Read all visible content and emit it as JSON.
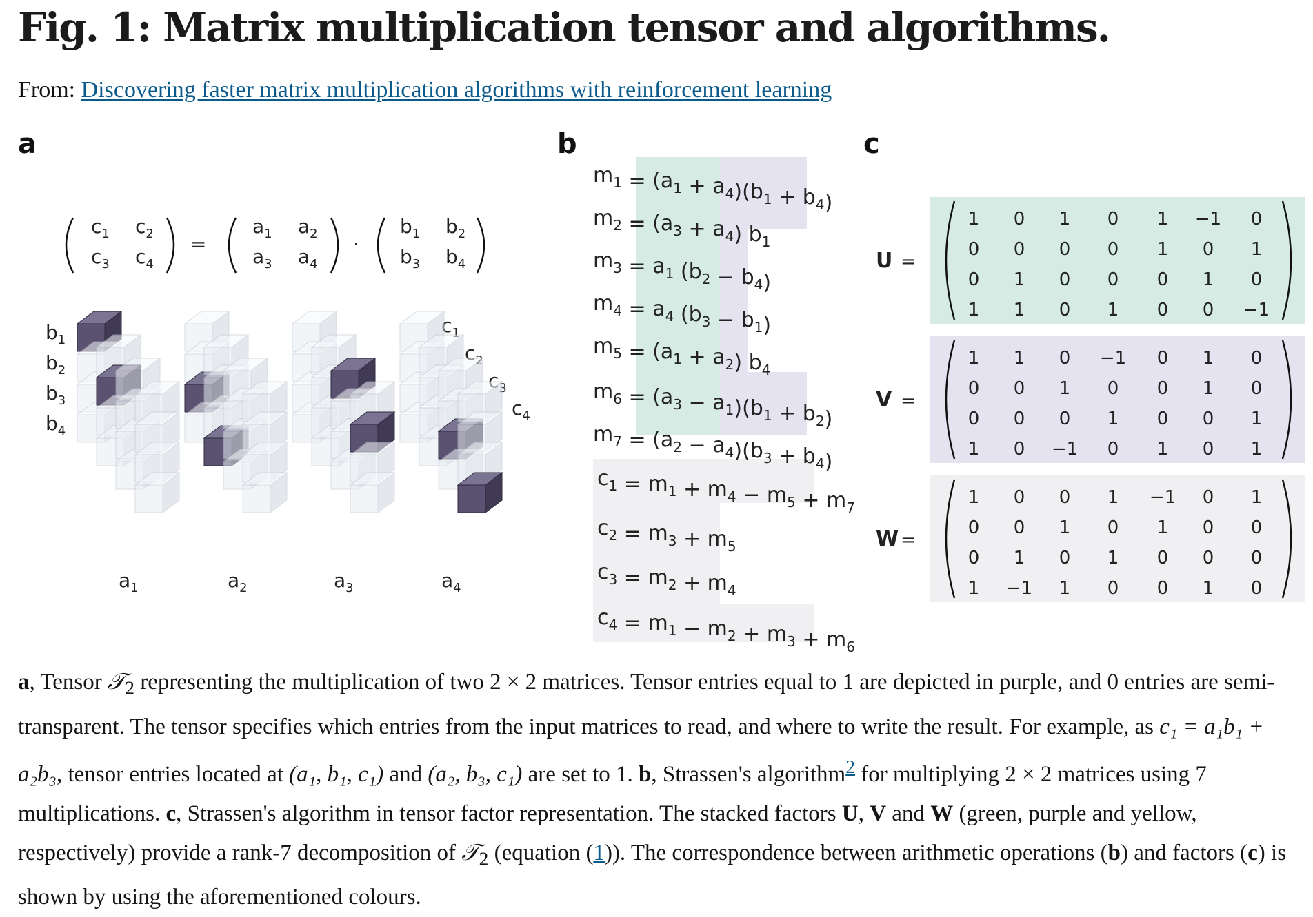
{
  "figure": {
    "title": "Fig. 1: Matrix multiplication tensor and algorithms.",
    "from_label": "From:",
    "source_link": "Discovering faster matrix multiplication algorithms with reinforcement learning"
  },
  "panels": {
    "a": "a",
    "b": "b",
    "c": "c"
  },
  "panel_a": {
    "matrix_c": [
      "c1",
      "c2",
      "c3",
      "c4"
    ],
    "matrix_a": [
      "a1",
      "a2",
      "a3",
      "a4"
    ],
    "matrix_b": [
      "b1",
      "b2",
      "b3",
      "b4"
    ],
    "equals": "=",
    "dot": "·",
    "b_axis": [
      "b1",
      "b2",
      "b3",
      "b4"
    ],
    "c_axis": [
      "c1",
      "c2",
      "c3",
      "c4"
    ],
    "a_axis": [
      "a1",
      "a2",
      "a3",
      "a4"
    ],
    "tensor_ones": [
      [
        1,
        1,
        1
      ],
      [
        2,
        3,
        1
      ],
      [
        1,
        2,
        2
      ],
      [
        2,
        4,
        2
      ],
      [
        3,
        1,
        3
      ],
      [
        4,
        3,
        3
      ],
      [
        3,
        2,
        4
      ],
      [
        4,
        4,
        4
      ]
    ],
    "colors": {
      "purple": "#5a5270",
      "cube_light": "#dde3ea"
    }
  },
  "panel_b": {
    "lines": [
      "m1 = (a1 + a4)(b1 + b4)",
      "m2 = (a3 + a4) b1",
      "m3 = a1 (b2 − b4)",
      "m4 = a4 (b3 − b1)",
      "m5 = (a1 + a2) b4",
      "m6 = (a3 − a1)(b1 + b2)",
      "m7 = (a2 − a4)(b3 + b4)",
      "c1 = m1 + m4 − m5 + m7",
      "c2 = m3 + m5",
      "c3 = m2 + m4",
      "c4 = m1 − m2 + m3 + m6"
    ],
    "colors": {
      "green": "#d5ebe3",
      "purple": "#e6e3f0",
      "yellow": "#f0f0f2"
    }
  },
  "panel_c": {
    "factors": [
      {
        "name": "U",
        "bg": "#d5ebe3",
        "rows": [
          [
            "1",
            "0",
            "1",
            "0",
            "1",
            "−1",
            "0"
          ],
          [
            "0",
            "0",
            "0",
            "0",
            "1",
            "0",
            "1"
          ],
          [
            "0",
            "1",
            "0",
            "0",
            "0",
            "1",
            "0"
          ],
          [
            "1",
            "1",
            "0",
            "1",
            "0",
            "0",
            "−1"
          ]
        ]
      },
      {
        "name": "V",
        "bg": "#e6e3f0",
        "rows": [
          [
            "1",
            "1",
            "0",
            "−1",
            "0",
            "1",
            "0"
          ],
          [
            "0",
            "0",
            "1",
            "0",
            "0",
            "1",
            "0"
          ],
          [
            "0",
            "0",
            "0",
            "1",
            "0",
            "0",
            "1"
          ],
          [
            "1",
            "0",
            "−1",
            "0",
            "1",
            "0",
            "1"
          ]
        ]
      },
      {
        "name": "W",
        "bg": "#f0f0f2",
        "rows": [
          [
            "1",
            "0",
            "0",
            "1",
            "−1",
            "0",
            "1"
          ],
          [
            "0",
            "0",
            "1",
            "0",
            "1",
            "0",
            "0"
          ],
          [
            "0",
            "1",
            "0",
            "1",
            "0",
            "0",
            "0"
          ],
          [
            "1",
            "−1",
            "1",
            "0",
            "0",
            "1",
            "0"
          ]
        ]
      }
    ],
    "equals": "="
  },
  "caption": {
    "a": "a",
    "t_a1": ", Tensor ",
    "tensor_sym": "𝒯",
    "sub2": "2",
    "t_a2": " representing the multiplication of two 2 × 2 matrices. Tensor entries equal to 1 are depicted in purple, and 0 entries are semi-transparent. The tensor specifies which entries from the input matrices to read, and where to write the result. For example, as ",
    "formula": "c₁ = a₁b₁ + a₂b₃",
    "t_a3": ", tensor entries located at ",
    "loc1": "(a₁, b₁, c₁)",
    "t_and": " and ",
    "loc2": "(a₂, b₃, c₁)",
    "t_a4": " are set to 1. ",
    "b": "b",
    "t_b1": ", Strassen's algorithm",
    "ref2": "2",
    "t_b2": " for multiplying 2 × 2 matrices using 7 multiplications. ",
    "c": "c",
    "t_c1": ", Strassen's algorithm in tensor factor representation. The stacked factors ",
    "U": "U",
    "comma": ", ",
    "V": "V",
    "t_and2": " and ",
    "W": "W",
    "t_c2": " (green, purple and yellow, respectively) provide a rank-7 decomposition of ",
    "t_c3": " (equation (",
    "ref1": "1",
    "t_c4": ")). The correspondence between arithmetic operations (",
    "t_c5": ") and factors (",
    "t_c6": ") is shown by using the aforementioned colours."
  }
}
